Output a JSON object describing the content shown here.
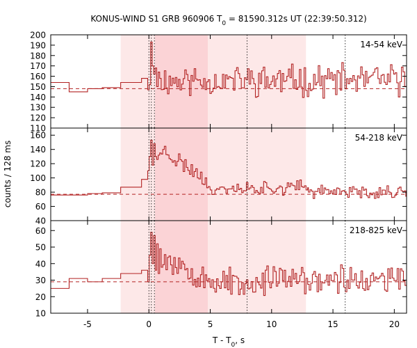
{
  "chart_data": {
    "type": "line",
    "title": "KONUS-WIND S1 GRB 960906 T",
    "title_sub": "0",
    "title_rest": " = 81590.312s UT (22:39:50.312)",
    "xlabel": "T - T",
    "xlabel_sub": "0",
    "xlabel_rest": ", s",
    "ylabel": "counts / 128 ms",
    "xlim": [
      -8,
      21
    ],
    "x_ticks": [
      -5,
      0,
      5,
      10,
      15,
      20
    ],
    "x_tick_labels": [
      "-5",
      "0",
      "5",
      "10",
      "15",
      "20"
    ],
    "line_color": "#b22222",
    "shade_colors": {
      "light": "#fde8e8",
      "dark": "#fbd3d6"
    },
    "shaded_regions": [
      {
        "x0": -2.3,
        "x1": 12.8,
        "tone": "light"
      },
      {
        "x0": 0.5,
        "x1": 4.8,
        "tone": "dark"
      }
    ],
    "vertical_markers": [
      0.0,
      0.2,
      0.45,
      8.0,
      16.0
    ],
    "panels": [
      {
        "band_label": "14-54 keV",
        "ylim": [
          110,
          200
        ],
        "y_ticks": [
          110,
          120,
          130,
          140,
          150,
          160,
          170,
          180,
          190,
          200
        ],
        "y_tick_labels": [
          "110",
          "120",
          "130",
          "140",
          "150",
          "160",
          "170",
          "180",
          "190",
          "200"
        ],
        "background": 148,
        "coarse_steps": [
          {
            "x0": -8.0,
            "x1": -6.5,
            "y": 154
          },
          {
            "x0": -6.5,
            "x1": -5.0,
            "y": 145
          },
          {
            "x0": -5.0,
            "x1": -3.8,
            "y": 148
          },
          {
            "x0": -3.8,
            "x1": -2.3,
            "y": 149
          },
          {
            "x0": -2.3,
            "x1": -0.6,
            "y": 154
          },
          {
            "x0": -0.6,
            "x1": -0.1,
            "y": 158
          }
        ],
        "fine_segments": [
          {
            "x0": -0.1,
            "x1": 1.0,
            "values": [
              147,
              152,
              193,
              170,
              162,
              168,
              150,
              164,
              158
            ]
          },
          {
            "x0": 1.0,
            "x1": 21.0,
            "base": 156,
            "amp": 12,
            "seed": 11
          }
        ]
      },
      {
        "band_label": "54-218 keV",
        "ylim": [
          40,
          170
        ],
        "y_ticks": [
          40,
          60,
          80,
          100,
          120,
          140,
          160
        ],
        "y_tick_labels": [
          "40",
          "60",
          "80",
          "100",
          "120",
          "140",
          "160"
        ],
        "background": 77,
        "coarse_steps": [
          {
            "x0": -8.0,
            "x1": -5.0,
            "y": 76
          },
          {
            "x0": -5.0,
            "x1": -3.8,
            "y": 78
          },
          {
            "x0": -3.8,
            "x1": -2.3,
            "y": 79
          },
          {
            "x0": -2.3,
            "x1": -0.6,
            "y": 87
          },
          {
            "x0": -0.6,
            "x1": -0.1,
            "y": 98
          }
        ],
        "fine_segments": [
          {
            "x0": -0.1,
            "x1": 1.0,
            "values": [
              110,
              130,
              153,
              118,
              148,
              130,
              126,
              132,
              135
            ]
          },
          {
            "x0": 1.0,
            "x1": 5.0,
            "base_start": 140,
            "base_end": 95,
            "amp": 10,
            "seed": 23
          },
          {
            "x0": 5.0,
            "x1": 13.0,
            "base": 86,
            "amp": 8,
            "seed": 37
          },
          {
            "x0": 13.0,
            "x1": 21.0,
            "base": 80,
            "amp": 7,
            "seed": 41
          }
        ]
      },
      {
        "band_label": "218-825 keV",
        "ylim": [
          10,
          66
        ],
        "y_ticks": [
          10,
          20,
          30,
          40,
          50,
          60
        ],
        "y_tick_labels": [
          "10",
          "20",
          "30",
          "40",
          "50",
          "60"
        ],
        "background": 29,
        "coarse_steps": [
          {
            "x0": -8.0,
            "x1": -6.5,
            "y": 25
          },
          {
            "x0": -6.5,
            "x1": -5.0,
            "y": 31
          },
          {
            "x0": -5.0,
            "x1": -3.8,
            "y": 29
          },
          {
            "x0": -3.8,
            "x1": -2.3,
            "y": 31
          },
          {
            "x0": -2.3,
            "x1": -0.6,
            "y": 34
          },
          {
            "x0": -0.6,
            "x1": -0.1,
            "y": 36
          }
        ],
        "fine_segments": [
          {
            "x0": -0.1,
            "x1": 1.0,
            "values": [
              29,
              45,
              59,
              40,
              57,
              36,
              52,
              34,
              49
            ]
          },
          {
            "x0": 1.0,
            "x1": 5.0,
            "base_start": 45,
            "base_end": 32,
            "amp": 8,
            "seed": 53
          },
          {
            "x0": 5.0,
            "x1": 21.0,
            "base": 30,
            "amp": 7,
            "seed": 67
          }
        ]
      }
    ]
  }
}
